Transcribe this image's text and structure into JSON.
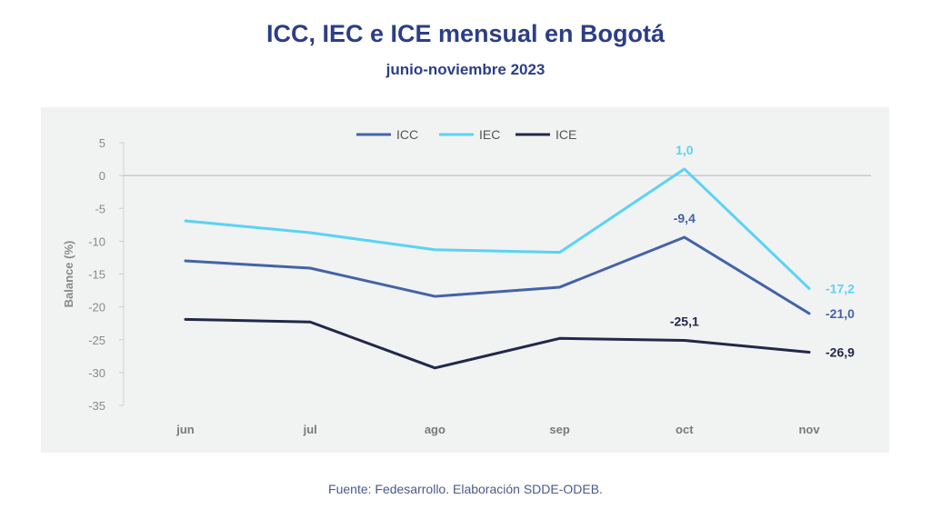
{
  "chart_data": {
    "type": "line",
    "title": "ICC, IEC e ICE mensual en Bogotá",
    "subtitle": "junio-noviembre 2023",
    "xlabel": "",
    "ylabel": "Balance (%)",
    "ylim": [
      -35,
      5
    ],
    "yticks": [
      5,
      0,
      -5,
      -10,
      -15,
      -20,
      -25,
      -30,
      -35
    ],
    "categories": [
      "jun",
      "jul",
      "ago",
      "sep",
      "oct",
      "nov"
    ],
    "legend_position": "top-center",
    "series": [
      {
        "name": "ICC",
        "color": "#4363a8",
        "values": [
          -13.0,
          -14.1,
          -18.4,
          -17.0,
          -9.4,
          -21.0
        ]
      },
      {
        "name": "IEC",
        "color": "#5ad3f5",
        "values": [
          -6.9,
          -8.7,
          -11.3,
          -11.7,
          1.0,
          -17.2
        ]
      },
      {
        "name": "ICE",
        "color": "#22284a",
        "values": [
          -21.9,
          -22.3,
          -29.3,
          -24.8,
          -25.1,
          -26.9
        ]
      }
    ],
    "data_labels": [
      {
        "series": "IEC",
        "category": "oct",
        "text": "1,0"
      },
      {
        "series": "ICC",
        "category": "oct",
        "text": "-9,4"
      },
      {
        "series": "ICE",
        "category": "oct",
        "text": "-25,1"
      },
      {
        "series": "IEC",
        "category": "nov",
        "text": "-17,2"
      },
      {
        "series": "ICC",
        "category": "nov",
        "text": "-21,0"
      },
      {
        "series": "ICE",
        "category": "nov",
        "text": "-26,9"
      }
    ]
  },
  "footer": {
    "source": "Fuente: Fedesarrollo. Elaboración SDDE-ODEB."
  }
}
